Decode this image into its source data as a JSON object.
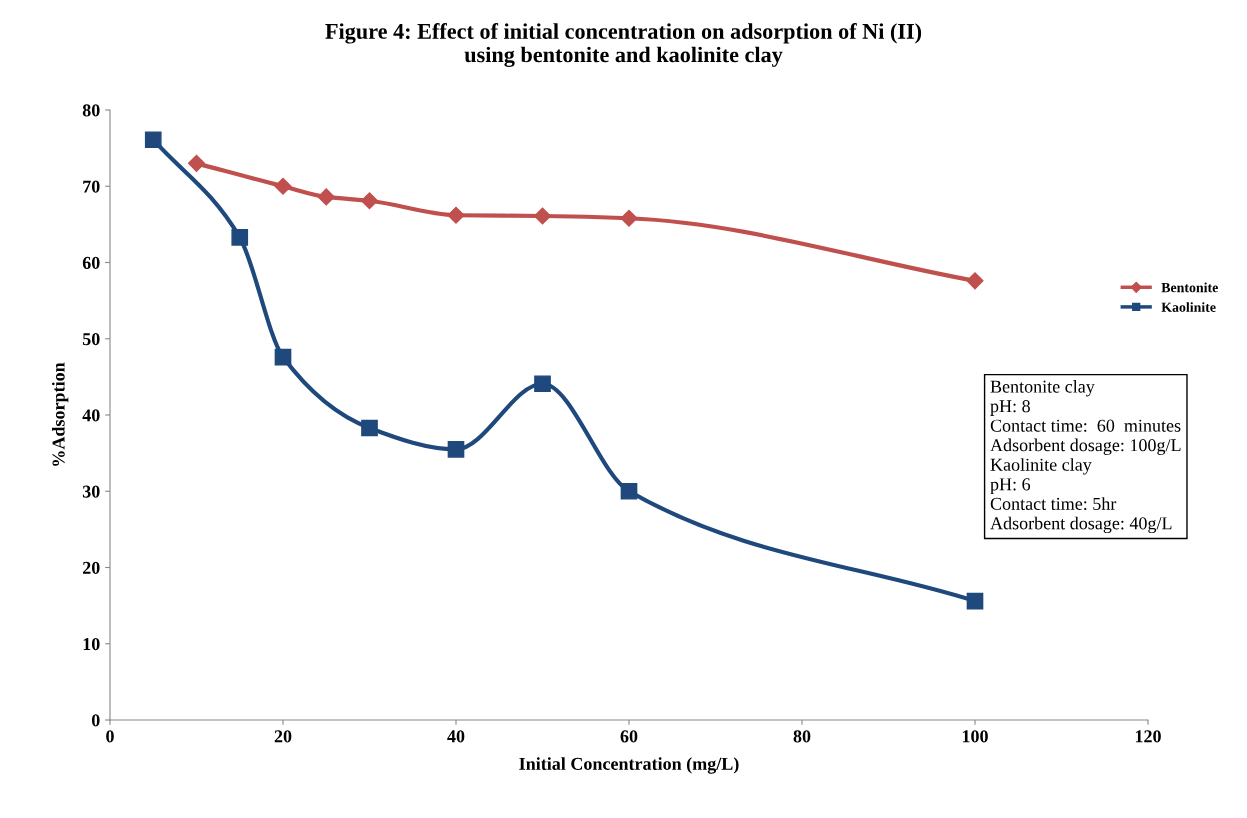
{
  "chart_data": {
    "type": "line",
    "title": "Figure 4: Effect of initial concentration on adsorption of Ni (II)\nusing bentonite and kaolinite clay",
    "xlabel": "Initial Concentration (mg/L)",
    "ylabel": "%Adsorption",
    "series": [
      {
        "name": "Bentonite",
        "color": "#c0504d",
        "marker": "diamond",
        "x": [
          10,
          20,
          25,
          30,
          40,
          50,
          60,
          100
        ],
        "values": [
          73.0,
          70.0,
          68.6,
          68.1,
          66.2,
          66.1,
          65.8,
          57.6
        ]
      },
      {
        "name": "Kaolinite",
        "color": "#1f497d",
        "marker": "square",
        "x": [
          5,
          15,
          20,
          30,
          40,
          50,
          60,
          100
        ],
        "values": [
          76.1,
          63.3,
          47.6,
          38.3,
          35.5,
          44.1,
          30.0,
          15.6
        ]
      }
    ],
    "xlim": [
      0,
      120
    ],
    "xticks": [
      0,
      20,
      40,
      60,
      80,
      100,
      120
    ],
    "ylim": [
      0,
      80
    ],
    "yticks": [
      0,
      10,
      20,
      30,
      40,
      50,
      60,
      70,
      80
    ],
    "grid": false,
    "legend": "right",
    "annotations": [
      "Bentonite clay",
      "pH: 8",
      "Contact time:  60  minutes",
      "Adsorbent dosage: 100g/L",
      "Kaolinite clay",
      "pH: 6",
      "Contact time: 5hr",
      "Adsorbent dosage: 40g/L"
    ]
  }
}
